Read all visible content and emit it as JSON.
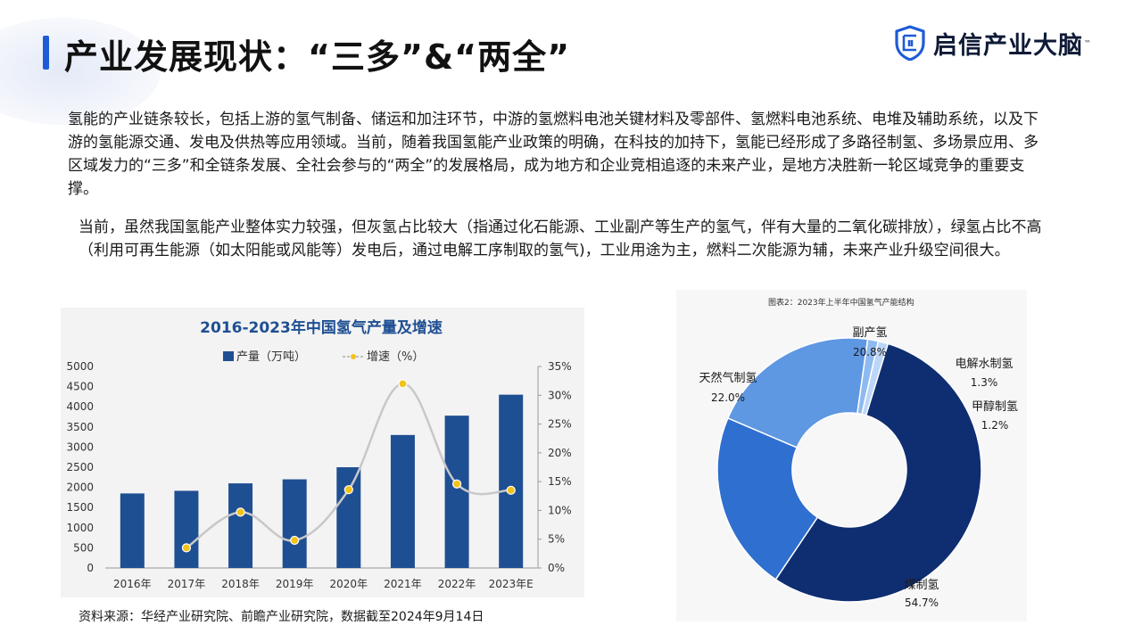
{
  "header": {
    "title": "产业发展现状：“三多”&“两全”",
    "brand_name": "启信产业大脑",
    "brand_tm": "™"
  },
  "body": {
    "paragraph1": "氢能的产业链条较长，包括上游的氢气制备、储运和加注环节，中游的氢燃料电池关键材料及零部件、氢燃料电池系统、电堆及辅助系统，以及下游的氢能源交通、发电及供热等应用领域。当前，随着我国氢能产业政策的明确，在科技的加持下，氢能已经形成了多路径制氢、多场景应用、多区域发力的“三多”和全链条发展、全社会参与的“两全”的发展格局，成为地方和企业竞相追逐的未来产业，是地方决胜新一轮区域竞争的重要支撑。",
    "paragraph2": "当前，虽然我国氢能产业整体实力较强，但灰氢占比较大（指通过化石能源、工业副产等生产的氢气，伴有大量的二氧化碳排放），绿氢占比不高（利用可再生能源（如太阳能或风能等）发电后，通过电解工序制取的氢气)，工业用途为主，燃料二次能源为辅，未来产业升级空间很大。",
    "source": "资料来源：华经产业研究院、前瞻产业研究院，数据截至2024年9月14日"
  },
  "colors": {
    "accent": "#1e5bd6",
    "bar": "#1f4f93",
    "line": "#c8c8c8",
    "marker": "#f2c318",
    "donut": [
      "#0f2e72",
      "#2f6fcf",
      "#5e97e2",
      "#8fbaf0",
      "#bcd6f7"
    ]
  },
  "chart_data": [
    {
      "type": "bar",
      "title": "2016-2023年中国氢气产量及增速",
      "categories": [
        "2016年",
        "2017年",
        "2018年",
        "2019年",
        "2020年",
        "2021年",
        "2022年",
        "2023年E"
      ],
      "series": [
        {
          "name": "产量（万吨）",
          "type": "bar",
          "axis": "left",
          "values": [
            1850,
            1915,
            2100,
            2200,
            2500,
            3300,
            3780,
            4300
          ]
        },
        {
          "name": "增速（%）",
          "type": "line",
          "axis": "right",
          "values": [
            null,
            3.5,
            9.7,
            4.8,
            13.6,
            32.0,
            14.6,
            13.5
          ]
        }
      ],
      "y_left": {
        "range": [
          0,
          5000
        ],
        "ticks": [
          "0",
          "500",
          "1000",
          "1500",
          "2000",
          "2500",
          "3000",
          "3500",
          "4000",
          "4500",
          "5000"
        ]
      },
      "y_right": {
        "range": [
          0,
          35
        ],
        "ticks": [
          "0%",
          "5%",
          "10%",
          "15%",
          "20%",
          "25%",
          "30%",
          "35%"
        ]
      },
      "legend": "top-center",
      "grid": false
    },
    {
      "type": "pie",
      "title": "图表2：2023年上半年中国氢气产能结构",
      "slices": [
        {
          "label": "煤制氢",
          "value": 54.7,
          "value_label": "54.7%"
        },
        {
          "label": "天然气制氢",
          "value": 22.0,
          "value_label": "22.0%"
        },
        {
          "label": "副产氢",
          "value": 20.8,
          "value_label": "20.8%"
        },
        {
          "label": "电解水制氢",
          "value": 1.3,
          "value_label": "1.3%"
        },
        {
          "label": "甲醇制氢",
          "value": 1.2,
          "value_label": "1.2%"
        }
      ]
    }
  ]
}
